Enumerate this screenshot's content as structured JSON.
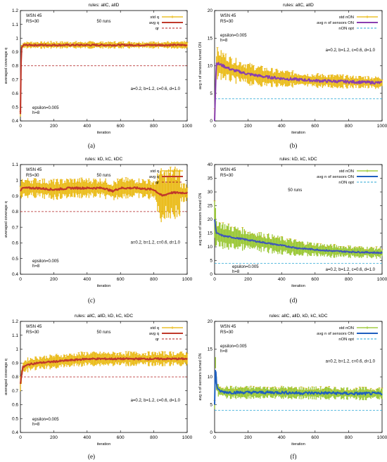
{
  "figure": {
    "panel_letters": [
      "(a)",
      "(b)",
      "(c)",
      "(d)",
      "(e)",
      "(f)"
    ]
  },
  "colors": {
    "std_band": "#e8b400",
    "std_errbar": "#e6a800",
    "std_band_d": "#8fc21f",
    "avg_q": "#c0392b",
    "avg_q_light": "#e8806a",
    "qr_line": "#b22222",
    "avg_on": "#1f5fbf",
    "avg_on_purple": "#8a3fb0",
    "opt_line": "#2aa7d6"
  },
  "chart_data": [
    {
      "id": "a",
      "type": "line",
      "title": "rules: allC, allD",
      "xlabel": "iteration",
      "ylabel": "averaged coverage q",
      "xlim": [
        0,
        1000
      ],
      "ylim": [
        0.4,
        1.2
      ],
      "xticks": [
        0,
        200,
        400,
        600,
        800,
        1000
      ],
      "yticks": [
        0.4,
        0.5,
        0.6,
        0.7,
        0.8,
        0.9,
        1,
        1.1,
        1.2
      ],
      "ytick_labels": [
        "0.4",
        "0.5",
        "0.6",
        "0.7",
        "0.8",
        "0.9",
        "1",
        "1.1",
        "1.2"
      ],
      "legend": [
        "std q",
        "avg q",
        "qr"
      ],
      "annotations": {
        "wsn": "WSN 45",
        "rs": "RS=30",
        "runs": "50 runs",
        "params": "a=0.2, b=1.2, c=0.6, d=1.0",
        "eps": "epsilon=0.005",
        "h": "h=8"
      },
      "series": [
        {
          "name": "avg q",
          "x": [
            0,
            5,
            20,
            100,
            200,
            400,
            600,
            800,
            1000
          ],
          "y": [
            0.45,
            0.93,
            0.95,
            0.95,
            0.95,
            0.95,
            0.95,
            0.95,
            0.95
          ]
        },
        {
          "name": "std q",
          "spread": 0.02
        },
        {
          "name": "qr",
          "value": 0.8
        }
      ]
    },
    {
      "id": "b",
      "type": "line",
      "title": "rules: allC, allD",
      "xlabel": "iteration",
      "ylabel": "avg n of sensors turned ON",
      "xlim": [
        0,
        1000
      ],
      "ylim": [
        0,
        20
      ],
      "xticks": [
        0,
        200,
        400,
        600,
        800,
        1000
      ],
      "yticks": [
        0,
        5,
        10,
        15,
        20
      ],
      "ytick_labels": [
        "0",
        "5",
        "10",
        "15",
        "20"
      ],
      "legend": [
        "std nON",
        "avg n of sensors ON",
        "nON opt"
      ],
      "annotations": {
        "wsn": "WSN 45",
        "rs": "RS=30",
        "runs": "",
        "params": "a=0.2, b=1.2, c=0.6, d=1.0",
        "eps": "epsilon=0.005",
        "h": "h=8"
      },
      "series": [
        {
          "name": "avg n of sensors ON",
          "x": [
            0,
            10,
            50,
            100,
            200,
            300,
            400,
            500,
            600,
            700,
            800,
            900,
            1000
          ],
          "y": [
            0,
            10.5,
            10,
            9.3,
            8.5,
            8.0,
            7.7,
            7.5,
            7.3,
            7.2,
            7.1,
            7.0,
            6.9
          ]
        },
        {
          "name": "std nON",
          "spread": [
            2.3,
            2.2,
            2.0,
            1.8,
            1.6,
            1.4,
            1.2,
            1.1,
            1.0,
            1.0,
            0.9,
            0.9,
            0.9
          ]
        },
        {
          "name": "nON opt",
          "value": 4
        }
      ]
    },
    {
      "id": "c",
      "type": "line",
      "title": "rules: kD, kC, kDC",
      "xlabel": "iteration",
      "ylabel": "averaged coverage q",
      "xlim": [
        0,
        1000
      ],
      "ylim": [
        0.4,
        1.1
      ],
      "xticks": [
        0,
        200,
        400,
        600,
        800,
        1000
      ],
      "yticks": [
        0.4,
        0.5,
        0.6,
        0.7,
        0.8,
        0.9,
        1,
        1.1
      ],
      "ytick_labels": [
        "0.4",
        "0.5",
        "0.6",
        "0.7",
        "0.8",
        "0.9",
        "1",
        "1.1"
      ],
      "legend": [
        "std q",
        "avg q",
        "qr"
      ],
      "annotations": {
        "wsn": "WSN 45",
        "rs": "RS=30",
        "runs": "50 runs",
        "params": "a=0.2, b=1.2, c=0.6, d=1.0",
        "eps": "epsilon=0.005",
        "h": "h=8"
      },
      "series": [
        {
          "name": "avg q",
          "x": [
            0,
            10,
            100,
            200,
            300,
            400,
            500,
            550,
            600,
            700,
            800,
            850,
            900,
            950,
            1000
          ],
          "y": [
            0.93,
            0.95,
            0.95,
            0.94,
            0.95,
            0.95,
            0.95,
            0.93,
            0.95,
            0.95,
            0.94,
            0.9,
            0.92,
            0.92,
            0.92
          ]
        },
        {
          "name": "std q",
          "spread": 0.05
        },
        {
          "name": "qr",
          "value": 0.8
        }
      ]
    },
    {
      "id": "d",
      "type": "line",
      "title": "rules: kD, kC, kDC",
      "xlabel": "iteration",
      "ylabel": "avg num of sensors turned ON",
      "xlim": [
        0,
        1000
      ],
      "ylim": [
        0,
        40
      ],
      "xticks": [
        0,
        200,
        400,
        600,
        800,
        1000
      ],
      "yticks": [
        0,
        5,
        10,
        15,
        20,
        25,
        30,
        35,
        40
      ],
      "ytick_labels": [
        "0",
        "5",
        "10",
        "15",
        "20",
        "25",
        "30",
        "35",
        "40"
      ],
      "legend": [
        "std nON",
        "avg n of sensors ON",
        "nON opt"
      ],
      "annotations": {
        "wsn": "WSN 45",
        "rs": "RS=30",
        "runs": "50 runs",
        "params": "a=0.2, b=1.2, c=0.6, d=1.0",
        "eps": "epsilon=0.005",
        "h": "h=8"
      },
      "series": [
        {
          "name": "avg n of sensors ON",
          "x": [
            0,
            10,
            50,
            100,
            200,
            300,
            400,
            500,
            600,
            700,
            800,
            900,
            1000
          ],
          "y": [
            20,
            15,
            14,
            13.5,
            12.5,
            11.5,
            10.5,
            9.5,
            9,
            8.5,
            8.2,
            8,
            7.8
          ]
        },
        {
          "name": "std nON",
          "spread": [
            6,
            4.5,
            4,
            3.5,
            3,
            2.8,
            2.5,
            2.3,
            2,
            1.9,
            1.8,
            1.7,
            1.6
          ]
        },
        {
          "name": "nON opt",
          "value": 4
        }
      ]
    },
    {
      "id": "e",
      "type": "line",
      "title": "rules: allC, allD, kD, kC, kDC",
      "xlabel": "iteration",
      "ylabel": "averaged coverage q",
      "xlim": [
        0,
        1000
      ],
      "ylim": [
        0.4,
        1.2
      ],
      "xticks": [
        0,
        200,
        400,
        600,
        800,
        1000
      ],
      "yticks": [
        0.4,
        0.5,
        0.6,
        0.7,
        0.8,
        0.9,
        1,
        1.1,
        1.2
      ],
      "ytick_labels": [
        "0.4",
        "0.5",
        "0.6",
        "0.7",
        "0.8",
        "0.9",
        "1",
        "1.1",
        "1.2"
      ],
      "legend": [
        "std q",
        "avg q",
        "qr"
      ],
      "annotations": {
        "wsn": "WSN 45",
        "rs": "RS=30",
        "runs": "50 runs",
        "params": "a=0.2, b=1.2, c=0.6, d=1.0",
        "eps": "epsilon=0.005",
        "h": "h=8"
      },
      "series": [
        {
          "name": "avg q",
          "x": [
            0,
            8,
            15,
            50,
            100,
            200,
            300,
            400,
            500,
            600,
            700,
            800,
            900,
            1000
          ],
          "y": [
            0.75,
            0.82,
            0.87,
            0.89,
            0.9,
            0.91,
            0.92,
            0.93,
            0.93,
            0.93,
            0.93,
            0.93,
            0.93,
            0.93
          ]
        },
        {
          "name": "std q",
          "spread": 0.04
        },
        {
          "name": "qr",
          "value": 0.8
        }
      ]
    },
    {
      "id": "f",
      "type": "line",
      "title": "rules: allC, allD, kD, kC, kDC",
      "xlabel": "iteration",
      "ylabel": "avg n of sensors turned ON",
      "xlim": [
        0,
        1000
      ],
      "ylim": [
        0,
        20
      ],
      "xticks": [
        0,
        200,
        400,
        600,
        800,
        1000
      ],
      "yticks": [
        0,
        5,
        10,
        15,
        20
      ],
      "ytick_labels": [
        "0",
        "5",
        "10",
        "15",
        "20"
      ],
      "legend": [
        "std nON",
        "avg n of sensors ON",
        "nON opt"
      ],
      "annotations": {
        "wsn": "WSN 45",
        "rs": "RS=30",
        "runs": "",
        "params": "a=0.2, b=1.2, c=0.6, d=1.0",
        "eps": "epsilon=0.005",
        "h": "h=8"
      },
      "series": [
        {
          "name": "avg n of sensors ON",
          "x": [
            0,
            5,
            10,
            20,
            50,
            100,
            200,
            300,
            400,
            500,
            600,
            700,
            800,
            900,
            1000
          ],
          "y": [
            5,
            13,
            9,
            7.6,
            7.3,
            7.2,
            7.2,
            7.2,
            7.2,
            7.1,
            7.1,
            7.1,
            7.0,
            7.0,
            7.0
          ]
        },
        {
          "name": "std nON",
          "spread": 0.9
        },
        {
          "name": "nON opt",
          "value": 4
        }
      ]
    }
  ]
}
